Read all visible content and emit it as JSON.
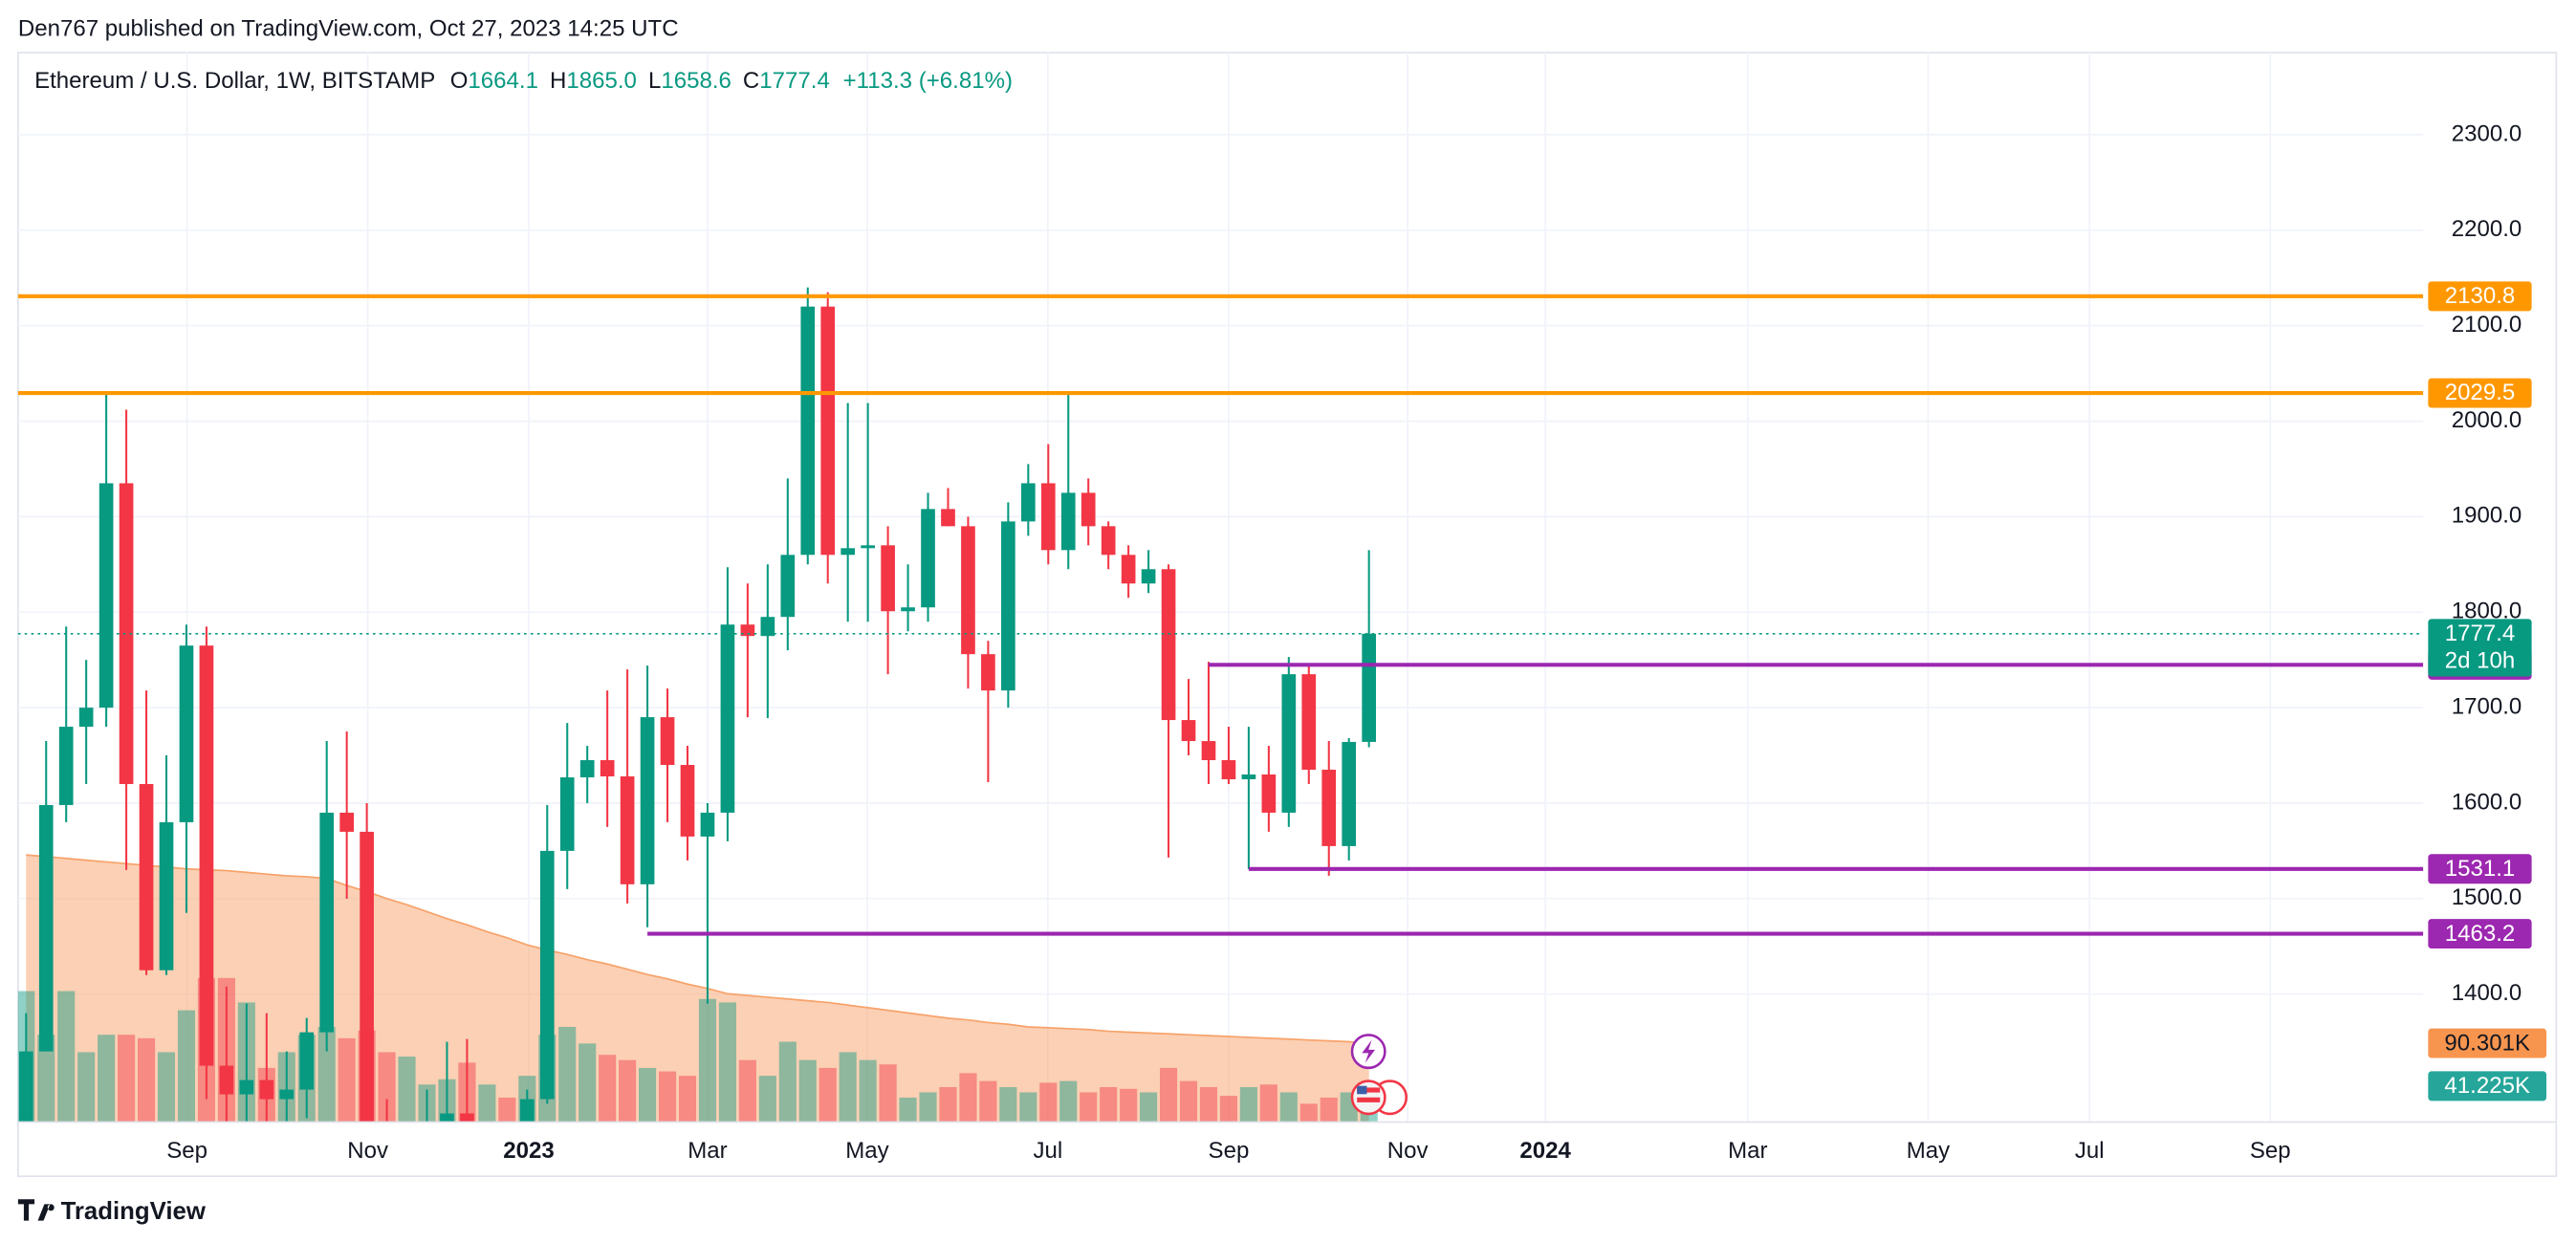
{
  "header": {
    "text": "Den767 published on TradingView.com, Oct 27, 2023 14:25 UTC"
  },
  "footer": {
    "brand": "TradingView"
  },
  "chart_data": {
    "type": "candlestick",
    "legend": {
      "title": "Ethereum / U.S. Dollar, 1W, BITSTAMP",
      "items": [
        {
          "key": "O",
          "value": "1664.1"
        },
        {
          "key": "H",
          "value": "1865.0"
        },
        {
          "key": "L",
          "value": "1658.6"
        },
        {
          "key": "C",
          "value": "1777.4"
        }
      ],
      "change": "+113.3 (+6.81%)"
    },
    "categories": [
      null,
      null,
      null,
      null,
      null,
      null,
      null,
      null,
      null,
      null,
      null,
      null,
      null,
      null,
      null,
      null,
      null,
      null,
      null,
      null,
      null,
      null,
      null,
      null,
      null,
      null,
      null,
      null,
      null,
      null,
      null,
      null,
      null,
      null,
      null,
      null,
      null,
      null,
      null,
      null,
      null,
      null,
      null,
      null,
      null,
      null,
      null,
      null,
      null,
      null,
      null,
      null,
      null,
      null,
      null,
      null,
      null,
      null,
      null,
      null,
      null,
      null,
      null,
      null,
      null,
      null,
      null,
      null
    ],
    "open": [
      1170,
      1340,
      1598,
      1680,
      1700,
      1935,
      1620,
      1425,
      1580,
      1765,
      1325,
      1295,
      1310,
      1290,
      1300,
      1360,
      1590,
      1570,
      1255,
      1160,
      1170,
      1265,
      1275,
      1165,
      1215,
      1195,
      1290,
      1550,
      1627,
      1645,
      1628,
      1515,
      1690,
      1640,
      1565,
      1590,
      1787,
      1775,
      1795,
      1860,
      2120,
      1860,
      1867,
      1870,
      1801,
      1805,
      1908,
      1890,
      1756,
      1718,
      1895,
      1935,
      1865,
      1925,
      1890,
      1860,
      1830,
      1845,
      1687,
      1665,
      1645,
      1625,
      1630,
      1590,
      1735,
      1635,
      1555,
      1664.1
    ],
    "high": [
      1380,
      1665,
      1785,
      1750,
      2030,
      2012,
      1718,
      1650,
      1787,
      1785,
      1408,
      1390,
      1380,
      1340,
      1375,
      1665,
      1675,
      1600,
      1290,
      1210,
      1300,
      1350,
      1353,
      1230,
      1230,
      1300,
      1598,
      1684,
      1660,
      1718,
      1740,
      1744,
      1720,
      1660,
      1600,
      1847,
      1830,
      1850,
      1940,
      2140,
      2135,
      2019,
      2019,
      1890,
      1850,
      1925,
      1930,
      1900,
      1770,
      1915,
      1955,
      1976,
      2028,
      1940,
      1895,
      1870,
      1865,
      1850,
      1730,
      1748,
      1680,
      1680,
      1660,
      1753,
      1745,
      1665,
      1668,
      1865.0
    ],
    "low": [
      1150,
      1340,
      1580,
      1620,
      1680,
      1530,
      1420,
      1420,
      1485,
      1290,
      1220,
      1265,
      1265,
      1190,
      1270,
      1340,
      1500,
      1075,
      1150,
      1075,
      1160,
      1225,
      1150,
      1160,
      1185,
      1190,
      1285,
      1510,
      1600,
      1575,
      1495,
      1470,
      1580,
      1540,
      1390,
      1560,
      1690,
      1689,
      1760,
      1850,
      1830,
      1790,
      1790,
      1735,
      1780,
      1790,
      1890,
      1720,
      1622,
      1700,
      1880,
      1850,
      1845,
      1870,
      1845,
      1815,
      1820,
      1543,
      1650,
      1620,
      1620,
      1531,
      1570,
      1575,
      1620,
      1524,
      1540,
      1658.6
    ],
    "close": [
      1340,
      1598,
      1680,
      1700,
      1935,
      1620,
      1425,
      1580,
      1765,
      1325,
      1295,
      1310,
      1290,
      1300,
      1360,
      1590,
      1570,
      1255,
      1160,
      1170,
      1265,
      1275,
      1165,
      1215,
      1195,
      1290,
      1550,
      1627,
      1645,
      1628,
      1515,
      1690,
      1640,
      1565,
      1590,
      1787,
      1775,
      1795,
      1860,
      2120,
      1860,
      1867,
      1870,
      1801,
      1805,
      1908,
      1890,
      1756,
      1718,
      1895,
      1935,
      1865,
      1925,
      1890,
      1860,
      1830,
      1845,
      1687,
      1665,
      1645,
      1625,
      1630,
      1590,
      1735,
      1635,
      1555,
      1664.1,
      1777.4
    ],
    "volume": [
      150,
      100,
      150,
      80,
      100,
      100,
      96,
      80,
      128,
      165,
      165,
      137,
      62,
      80,
      100,
      109,
      96,
      105,
      80,
      75,
      43,
      49,
      68,
      43,
      28,
      53,
      100,
      109,
      90,
      77,
      71,
      62,
      58,
      53,
      141,
      137,
      71,
      53,
      92,
      71,
      62,
      80,
      71,
      66,
      28,
      34,
      40,
      56,
      47,
      40,
      34,
      45,
      47,
      34,
      40,
      38,
      34,
      62,
      47,
      40,
      30,
      40,
      43,
      34,
      21,
      28,
      34,
      41.225
    ],
    "volume_labels": [
      null,
      null,
      null,
      null,
      null,
      null,
      null,
      null,
      null,
      null,
      null,
      null,
      null,
      null,
      null,
      null,
      null,
      null,
      null,
      null,
      null,
      null,
      null,
      null,
      null,
      null,
      null,
      null,
      null,
      null,
      null,
      null,
      null,
      null,
      null,
      null,
      null,
      null,
      null,
      null,
      null,
      null,
      null,
      null,
      null,
      null,
      null,
      null,
      null,
      null,
      null,
      null,
      null,
      null,
      null,
      null,
      null,
      null,
      null,
      null,
      null,
      null,
      null,
      null,
      null,
      null,
      null,
      "41.225K"
    ],
    "volume_ma": [
      306,
      304,
      302,
      300,
      298,
      296,
      294,
      292,
      290,
      289,
      288,
      286,
      284,
      282,
      281,
      279,
      271,
      264,
      256,
      249,
      241,
      233,
      226,
      218,
      211,
      203,
      197,
      192,
      186,
      181,
      175,
      169,
      164,
      158,
      153,
      147,
      145,
      143,
      141,
      139,
      137,
      134,
      131,
      128,
      125,
      122,
      119,
      117,
      114,
      112,
      109,
      108,
      107,
      106,
      104,
      103,
      102,
      101,
      100,
      99,
      98,
      97,
      96,
      95,
      94,
      93,
      92,
      90.301
    ],
    "volume_ma_labels": [
      null,
      null,
      null,
      null,
      null,
      null,
      null,
      null,
      null,
      null,
      null,
      null,
      null,
      null,
      null,
      null,
      null,
      null,
      null,
      null,
      null,
      null,
      null,
      null,
      null,
      null,
      null,
      null,
      null,
      null,
      null,
      null,
      null,
      null,
      null,
      null,
      null,
      null,
      null,
      null,
      null,
      null,
      null,
      null,
      null,
      null,
      null,
      null,
      null,
      null,
      null,
      null,
      null,
      null,
      null,
      null,
      null,
      null,
      null,
      null,
      null,
      null,
      null,
      null,
      null,
      null,
      null,
      "90.301K"
    ],
    "countdown": "2d 10h",
    "up_color": "#089981",
    "down_color": "#f23645",
    "volume_ma_color": "#f7a26a",
    "ylim": [
      1266,
      2386
    ],
    "yticks": [
      {
        "value": 1400,
        "label": "1400.0"
      },
      {
        "value": 1500,
        "label": "1500.0"
      },
      {
        "value": 1600,
        "label": "1600.0"
      },
      {
        "value": 1700,
        "label": "1700.0"
      },
      {
        "value": 1800,
        "label": "1800.0"
      },
      {
        "value": 1900,
        "label": "1900.0"
      },
      {
        "value": 2000,
        "label": "2000.0"
      },
      {
        "value": 2100,
        "label": "2100.0"
      },
      {
        "value": 2200,
        "label": "2200.0"
      },
      {
        "value": 2300,
        "label": "2300.0"
      }
    ],
    "volume_lim": [
      0,
      1225
    ],
    "xlim": [
      -0.4,
      119.6
    ],
    "xticks": [
      {
        "value": 8.03,
        "label": "Sep"
      },
      {
        "value": 17.05,
        "label": "Nov"
      },
      {
        "value": 25.08,
        "label": "2023"
      },
      {
        "value": 34.0,
        "label": "Mar"
      },
      {
        "value": 41.97,
        "label": "May"
      },
      {
        "value": 50.98,
        "label": "Jul"
      },
      {
        "value": 60.0,
        "label": "Sep"
      },
      {
        "value": 68.93,
        "label": "Nov"
      },
      {
        "value": 75.8,
        "label": "2024"
      },
      {
        "value": 85.9,
        "label": "Mar"
      },
      {
        "value": 94.9,
        "label": "May"
      },
      {
        "value": 102.95,
        "label": "Jul"
      },
      {
        "value": 111.97,
        "label": "Sep"
      }
    ],
    "levels": [
      {
        "value": 2130.8,
        "color": "#ff9800",
        "from": null
      },
      {
        "value": 2029.5,
        "color": "#ff9800",
        "from": null
      },
      {
        "value": 1744.8,
        "color": "#9c27b0",
        "from": 59
      },
      {
        "value": 1531.1,
        "color": "#9c27b0",
        "from": 61
      },
      {
        "value": 1463.2,
        "color": "#9c27b0",
        "from": 31
      }
    ],
    "grid": true
  }
}
